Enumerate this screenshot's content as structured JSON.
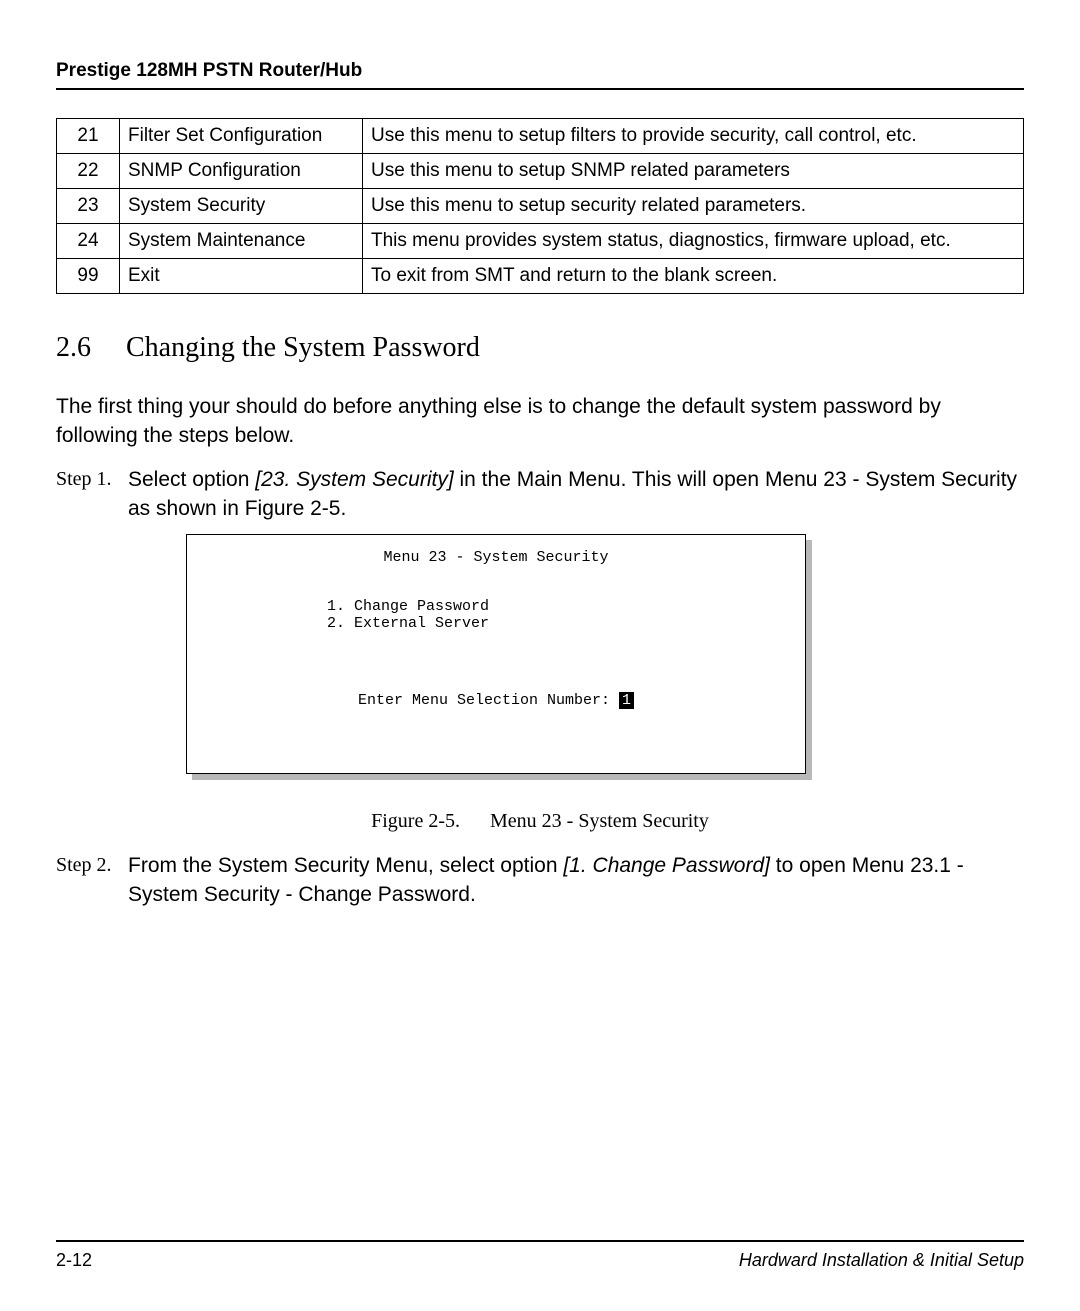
{
  "header": {
    "title": "Prestige 128MH  PSTN Router/Hub"
  },
  "table": {
    "rows": [
      {
        "num": "21",
        "name": "Filter Set Configuration",
        "desc": "Use this menu to setup filters to provide security, call control, etc."
      },
      {
        "num": "22",
        "name": "SNMP Configuration",
        "desc": "Use this menu to setup SNMP related parameters"
      },
      {
        "num": "23",
        "name": "System Security",
        "desc": "Use this menu to setup security related parameters."
      },
      {
        "num": "24",
        "name": "System Maintenance",
        "desc": "This menu provides system status, diagnostics, firmware upload, etc."
      },
      {
        "num": "99",
        "name": "Exit",
        "desc": "To exit from SMT and return to the blank screen."
      }
    ]
  },
  "section": {
    "num": "2.6",
    "title": "Changing the System Password"
  },
  "intro": "The first thing your should do before anything else is to change the default system password by following the steps below.",
  "step1": {
    "label": "Step 1.",
    "pre": "Select option ",
    "italic1": "[23. System Security]",
    "mid": " in the Main Menu. This will open Menu 23 - System Security as shown in ",
    "figref": "Figure  2-5",
    "post": "."
  },
  "terminal": {
    "title": "Menu 23 - System Security",
    "line1": "1. Change Password",
    "line2": "2. External Server",
    "prompt_pre": "Enter Menu Selection Number: ",
    "prompt_val": "1"
  },
  "caption": {
    "fig": "Figure   2-5.",
    "text": "Menu 23  - System Security"
  },
  "step2": {
    "label": "Step 2.",
    "pre": "From the System Security Menu, select option ",
    "italic1": "[1. Change Password]",
    "post": " to open Menu 23.1 - System Security - Change Password."
  },
  "footer": {
    "left": "2-12",
    "right": "Hardward Installation & Initial Setup"
  },
  "colors": {
    "text": "#000000",
    "bg": "#ffffff",
    "shadow": "#b8b8b8"
  }
}
